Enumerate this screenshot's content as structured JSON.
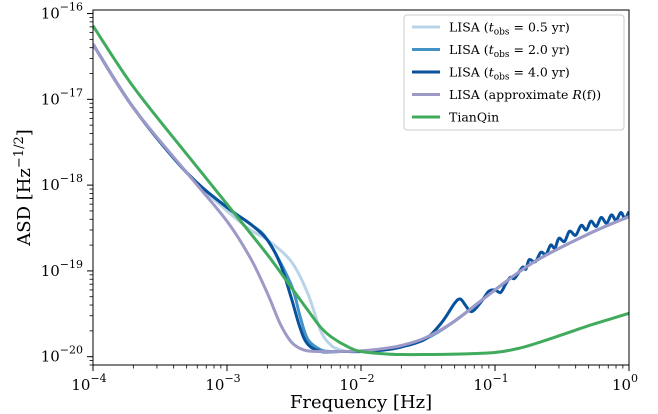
{
  "chart_data": {
    "type": "line",
    "xlabel": "Frequency [Hz]",
    "ylabel": "ASD [Hz",
    "ylabel_sup": "−1/2",
    "ylabel_end": "]",
    "xscale": "log",
    "yscale": "log",
    "xlim": [
      0.0001,
      1
    ],
    "ylim": [
      8e-21,
      1.1e-16
    ],
    "x_ticks": [
      {
        "base": "10",
        "exp": "−4"
      },
      {
        "base": "10",
        "exp": "−3"
      },
      {
        "base": "10",
        "exp": "−2"
      },
      {
        "base": "10",
        "exp": "−1"
      },
      {
        "base": "10",
        "exp": "0"
      }
    ],
    "y_ticks": [
      {
        "base": "10",
        "exp": "−20"
      },
      {
        "base": "10",
        "exp": "−19"
      },
      {
        "base": "10",
        "exp": "−18"
      },
      {
        "base": "10",
        "exp": "−17"
      },
      {
        "base": "10",
        "exp": "−16"
      }
    ],
    "legend_position": "top-right",
    "series": [
      {
        "name": "LISA (t_obs = 0.5 yr)",
        "legend": {
          "pre": "LISA (",
          "var": "t",
          "sub": "obs",
          "post": " = 0.5 yr)"
        },
        "color": "#b9d4e8",
        "x": [
          0.0001,
          0.0002,
          0.0005,
          0.001,
          0.0015,
          0.002,
          0.003,
          0.004,
          0.005,
          0.006,
          0.007,
          0.008,
          0.01,
          0.012,
          0.015,
          0.02,
          0.03,
          0.05,
          0.1,
          0.2,
          0.5,
          1
        ],
        "y": [
          4.4e-17,
          8e-18,
          1.4e-18,
          5e-19,
          3e-19,
          2.3e-19,
          1.3e-19,
          5.5e-20,
          2e-20,
          1.35e-20,
          1.2e-20,
          1.15e-20,
          1.15e-20,
          1.17e-20,
          1.2e-20,
          1.3e-20,
          1.6e-20,
          2.6e-20,
          6e-20,
          1.3e-19,
          2.7e-19,
          4.3e-19
        ]
      },
      {
        "name": "LISA (t_obs = 2.0 yr)",
        "legend": {
          "pre": "LISA (",
          "var": "t",
          "sub": "obs",
          "post": " = 2.0 yr)"
        },
        "color": "#4292c6",
        "x": [
          0.0001,
          0.0002,
          0.0005,
          0.001,
          0.0015,
          0.002,
          0.003,
          0.0035,
          0.004,
          0.005,
          0.006,
          0.007,
          0.008,
          0.01,
          0.012,
          0.015,
          0.02,
          0.03,
          0.05,
          0.1,
          0.2,
          0.5,
          1
        ],
        "y": [
          4.4e-17,
          8e-18,
          1.4e-18,
          5.5e-19,
          3.5e-19,
          2.3e-19,
          7e-20,
          3e-20,
          1.6e-20,
          1.2e-20,
          1.15e-20,
          1.15e-20,
          1.15e-20,
          1.15e-20,
          1.17e-20,
          1.2e-20,
          1.3e-20,
          1.6e-20,
          2.6e-20,
          6e-20,
          1.3e-19,
          2.7e-19,
          4.3e-19
        ]
      },
      {
        "name": "LISA (t_obs = 4.0 yr)",
        "legend": {
          "pre": "LISA (",
          "var": "t",
          "sub": "obs",
          "post": " = 4.0 yr)"
        },
        "color": "#08519c",
        "x": [
          0.0001,
          0.0002,
          0.0005,
          0.001,
          0.0015,
          0.002,
          0.0025,
          0.003,
          0.0035,
          0.004,
          0.005,
          0.007,
          0.01,
          0.015,
          0.02,
          0.03,
          0.04,
          0.05,
          0.055,
          0.06,
          0.065,
          0.07,
          0.08,
          0.09,
          0.1,
          0.11,
          0.12,
          0.13,
          0.14,
          0.16,
          0.17,
          0.18,
          0.2,
          0.22,
          0.24,
          0.26,
          0.28,
          0.3,
          0.33,
          0.36,
          0.4,
          0.44,
          0.48,
          0.52,
          0.57,
          0.62,
          0.68,
          0.74,
          0.8,
          0.87,
          0.93,
          1
        ],
        "y": [
          4.4e-17,
          8e-18,
          1.4e-18,
          5.5e-19,
          3.5e-19,
          2.3e-19,
          1.2e-19,
          5e-20,
          2.2e-20,
          1.4e-20,
          1.15e-20,
          1.15e-20,
          1.15e-20,
          1.2e-20,
          1.3e-20,
          1.6e-20,
          2.5e-20,
          4.2e-20,
          4.7e-20,
          4e-20,
          3.4e-20,
          3.5e-20,
          4.5e-20,
          5.8e-20,
          6e-20,
          5.6e-20,
          7e-20,
          8.4e-20,
          8.2e-20,
          1.1e-19,
          1.05e-19,
          1.35e-19,
          1.28e-19,
          1.65e-19,
          1.55e-19,
          2e-19,
          1.85e-19,
          2.4e-19,
          2.2e-19,
          2.9e-19,
          2.6e-19,
          3.4e-19,
          3e-19,
          3.8e-19,
          3.3e-19,
          4.2e-19,
          3.6e-19,
          4.5e-19,
          3.9e-19,
          4.8e-19,
          4.1e-19,
          4.9e-19
        ]
      },
      {
        "name": "LISA (approximate R(f))",
        "legend": {
          "pre": "LISA (approximate ",
          "cal": "R",
          "post": "(f))"
        },
        "color": "#9e9ac8",
        "x": [
          0.0001,
          0.0002,
          0.0005,
          0.001,
          0.0015,
          0.002,
          0.0025,
          0.003,
          0.0035,
          0.004,
          0.005,
          0.007,
          0.01,
          0.015,
          0.02,
          0.03,
          0.05,
          0.1,
          0.2,
          0.5,
          1
        ],
        "y": [
          4.4e-17,
          8e-18,
          1.4e-18,
          3.8e-19,
          1.4e-19,
          5.5e-20,
          2.4e-20,
          1.5e-20,
          1.25e-20,
          1.17e-20,
          1.15e-20,
          1.15e-20,
          1.17e-20,
          1.25e-20,
          1.35e-20,
          1.65e-20,
          2.6e-20,
          6e-20,
          1.3e-19,
          2.7e-19,
          4.3e-19
        ]
      },
      {
        "name": "TianQin",
        "legend": {
          "pre": "TianQin"
        },
        "color": "#41ab5d",
        "x": [
          0.0001,
          0.0002,
          0.0005,
          0.001,
          0.002,
          0.003,
          0.004,
          0.005,
          0.006,
          0.008,
          0.01,
          0.015,
          0.02,
          0.03,
          0.05,
          0.1,
          0.15,
          0.2,
          0.3,
          0.5,
          0.7,
          1
        ],
        "y": [
          7.2e-17,
          1.4e-17,
          2.3e-18,
          6e-19,
          1.55e-19,
          6.5e-20,
          3.5e-20,
          2.2e-20,
          1.7e-20,
          1.3e-20,
          1.15e-20,
          1.08e-20,
          1.06e-20,
          1.06e-20,
          1.07e-20,
          1.12e-20,
          1.25e-20,
          1.42e-20,
          1.75e-20,
          2.3e-20,
          2.7e-20,
          3.2e-20
        ]
      }
    ]
  }
}
